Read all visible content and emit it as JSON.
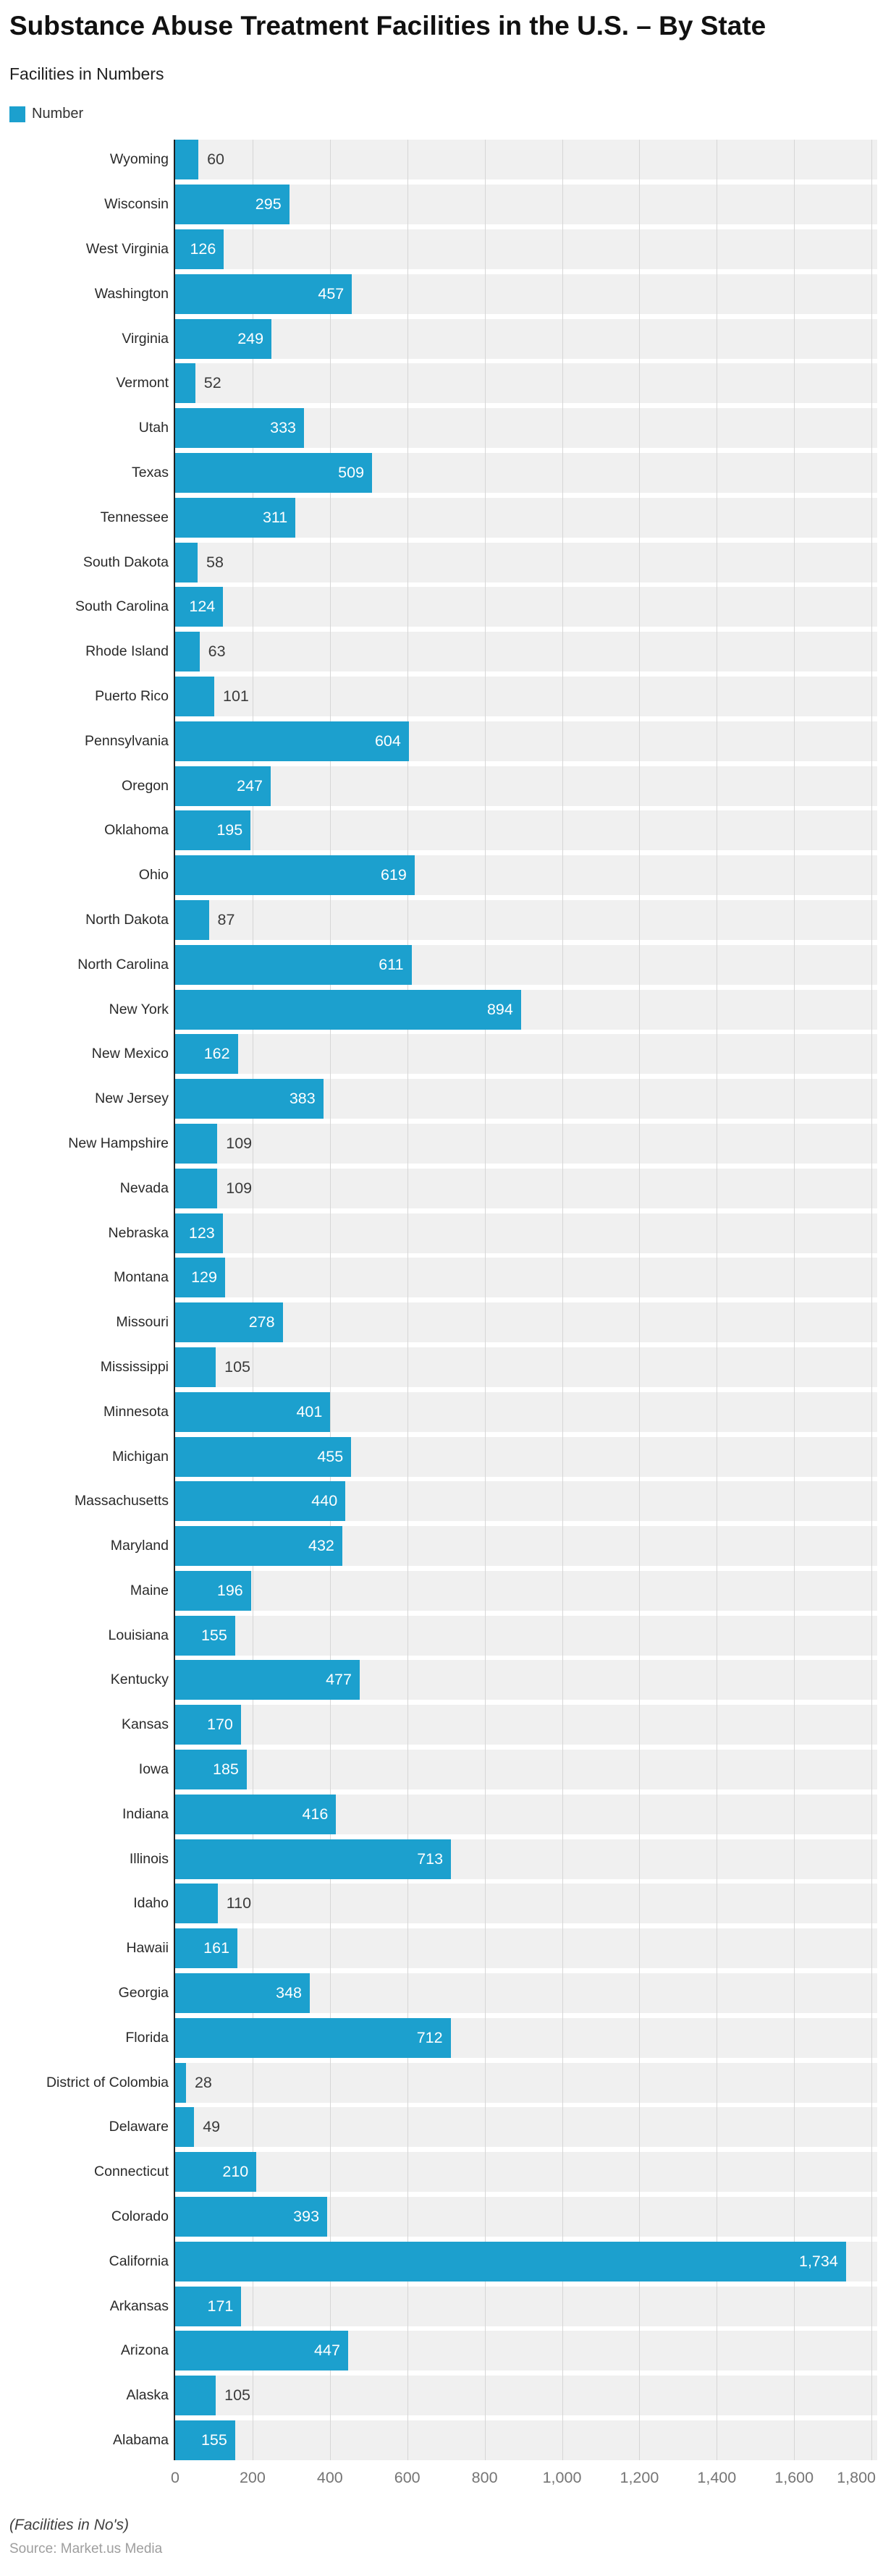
{
  "header": {
    "title": "Substance Abuse Treatment Facilities in the U.S. – By State",
    "subtitle": "Facilities in Numbers",
    "legend": {
      "label": "Number",
      "color": "#1CA0CE"
    }
  },
  "chart_data": {
    "type": "bar",
    "orientation": "horizontal",
    "title": "Substance Abuse Treatment Facilities in the U.S. – By State",
    "subtitle": "Facilities in Numbers",
    "series_name": "Number",
    "categories": [
      "Wyoming",
      "Wisconsin",
      "West Virginia",
      "Washington",
      "Virginia",
      "Vermont",
      "Utah",
      "Texas",
      "Tennessee",
      "South Dakota",
      "South Carolina",
      "Rhode Island",
      "Puerto Rico",
      "Pennsylvania",
      "Oregon",
      "Oklahoma",
      "Ohio",
      "North Dakota",
      "North Carolina",
      "New York",
      "New Mexico",
      "New Jersey",
      "New Hampshire",
      "Nevada",
      "Nebraska",
      "Montana",
      "Missouri",
      "Mississippi",
      "Minnesota",
      "Michigan",
      "Massachusetts",
      "Maryland",
      "Maine",
      "Louisiana",
      "Kentucky",
      "Kansas",
      "Iowa",
      "Indiana",
      "Illinois",
      "Idaho",
      "Hawaii",
      "Georgia",
      "Florida",
      "District of Colombia",
      "Delaware",
      "Connecticut",
      "Colorado",
      "California",
      "Arkansas",
      "Arizona",
      "Alaska",
      "Alabama"
    ],
    "values": [
      60,
      295,
      126,
      457,
      249,
      52,
      333,
      509,
      311,
      58,
      124,
      63,
      101,
      604,
      247,
      195,
      619,
      87,
      611,
      894,
      162,
      383,
      109,
      109,
      123,
      129,
      278,
      105,
      401,
      455,
      440,
      432,
      196,
      155,
      477,
      170,
      185,
      416,
      713,
      110,
      161,
      348,
      712,
      28,
      49,
      210,
      393,
      1734,
      171,
      447,
      105,
      155
    ],
    "xlabel": "",
    "ylabel": "",
    "xlim": [
      0,
      1800
    ],
    "x_tick_values": [
      0,
      200,
      400,
      600,
      800,
      1000,
      1200,
      1400,
      1600,
      1800
    ],
    "x_tick_labels": [
      "0",
      "200",
      "400",
      "600",
      "800",
      "1,000",
      "1,200",
      "1,400",
      "1,600",
      "1,800"
    ],
    "grid": true,
    "legend_position": "top-left",
    "bar_color": "#1CA0CE",
    "row_band_color": "#f0f0f0",
    "gridline_color": "#d6d6d6",
    "value_label_rule": "white inside bar when value >= 120, dark gray outside otherwise"
  },
  "footer": {
    "note": "(Facilities in No's)",
    "source": "Source: Market.us Media"
  }
}
